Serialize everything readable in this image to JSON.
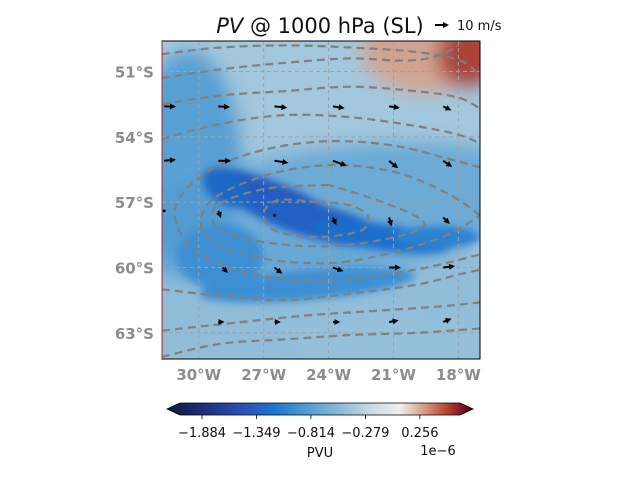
{
  "chart_data": {
    "type": "heatmap",
    "title_var": "PV",
    "title_rest": " @ 1000 hPa (SL)",
    "quiver_key": {
      "label": "10 m/s",
      "value_ms": 10
    },
    "x_ticks": [
      -30,
      -27,
      -24,
      -21,
      -18
    ],
    "x_tick_labels": [
      "30°W",
      "27°W",
      "24°W",
      "21°W",
      "18°W"
    ],
    "y_ticks": [
      -51,
      -54,
      -57,
      -60,
      -63
    ],
    "y_tick_labels": [
      "51°S",
      "54°S",
      "57°S",
      "60°S",
      "63°S"
    ],
    "xlim": [
      -31.7,
      -17.0
    ],
    "ylim": [
      -64.2,
      -49.6
    ],
    "grid": true,
    "colorbar": {
      "label": "PVU",
      "exponent_label": "1e−6",
      "ticks": [
        -1.884,
        -1.349,
        -0.814,
        -0.279,
        0.256
      ],
      "tick_labels": [
        "−1.884",
        "−1.349",
        "−0.814",
        "−0.279",
        "0.256"
      ],
      "vmin": -2.1,
      "vmax": 0.65,
      "cmap_stops": [
        [
          "#0d1a3a",
          0.0
        ],
        [
          "#1f2f7a",
          0.12
        ],
        [
          "#2a52b8",
          0.25
        ],
        [
          "#1876d2",
          0.35
        ],
        [
          "#4d9ad3",
          0.45
        ],
        [
          "#8fbcd8",
          0.57
        ],
        [
          "#cfdee6",
          0.68
        ],
        [
          "#eeeeee",
          0.76
        ],
        [
          "#d9a88f",
          0.83
        ],
        [
          "#b84a36",
          0.91
        ],
        [
          "#7a0f1f",
          0.97
        ],
        [
          "#3a0010",
          1.0
        ]
      ]
    },
    "contour_color": "#808080",
    "contours": [
      [
        [
          -31.7,
          -50.2
        ],
        [
          -29,
          -49.9
        ],
        [
          -26,
          -49.8
        ],
        [
          -23,
          -49.9
        ],
        [
          -20,
          -50.1
        ],
        [
          -17.9,
          -50.5
        ],
        [
          -17.0,
          -51.2
        ]
      ],
      [
        [
          -31.7,
          -51.3
        ],
        [
          -29,
          -50.9
        ],
        [
          -26,
          -50.6
        ],
        [
          -23,
          -50.4
        ],
        [
          -20.5,
          -50.5
        ],
        [
          -19,
          -50.3
        ],
        [
          -18,
          -49.8
        ]
      ],
      [
        [
          -31.7,
          -52.5
        ],
        [
          -29,
          -52.1
        ],
        [
          -26,
          -51.9
        ],
        [
          -23,
          -51.7
        ],
        [
          -20,
          -51.9
        ],
        [
          -18,
          -52.2
        ],
        [
          -17.0,
          -52.7
        ]
      ],
      [
        [
          -31.7,
          -54.1
        ],
        [
          -29,
          -53.4
        ],
        [
          -26,
          -53.0
        ],
        [
          -23,
          -53.1
        ],
        [
          -20,
          -53.5
        ],
        [
          -18,
          -53.9
        ],
        [
          -17.0,
          -54.3
        ]
      ],
      [
        [
          -17.0,
          -55.4
        ],
        [
          -18.5,
          -55.0
        ],
        [
          -21,
          -54.4
        ],
        [
          -24,
          -54.2
        ],
        [
          -27,
          -54.6
        ],
        [
          -29.6,
          -55.6
        ],
        [
          -31.1,
          -57.3
        ],
        [
          -30.2,
          -59.2
        ],
        [
          -27.5,
          -60.3
        ],
        [
          -24,
          -60.6
        ],
        [
          -20,
          -60.1
        ],
        [
          -17.0,
          -59.4
        ]
      ],
      [
        [
          -17.0,
          -57.6
        ],
        [
          -18.5,
          -56.6
        ],
        [
          -21,
          -55.6
        ],
        [
          -24,
          -55.3
        ],
        [
          -27,
          -55.8
        ],
        [
          -29.5,
          -57.0
        ],
        [
          -29.7,
          -58.5
        ],
        [
          -27.5,
          -59.5
        ],
        [
          -24,
          -59.8
        ],
        [
          -21,
          -59.3
        ],
        [
          -18.5,
          -58.5
        ],
        [
          -17.0,
          -57.6
        ]
      ],
      [
        [
          -24.0,
          -56.2
        ],
        [
          -27,
          -56.4
        ],
        [
          -29.2,
          -57.2
        ],
        [
          -29,
          -58.3
        ],
        [
          -26.5,
          -58.9
        ],
        [
          -23.5,
          -59.0
        ],
        [
          -20.5,
          -58.5
        ],
        [
          -19.6,
          -57.9
        ],
        [
          -21.5,
          -57.0
        ],
        [
          -24.0,
          -56.2
        ]
      ],
      [
        [
          -24.5,
          -57.0
        ],
        [
          -26.3,
          -56.9
        ],
        [
          -27.0,
          -57.5
        ],
        [
          -26.5,
          -58.3
        ],
        [
          -24.5,
          -58.6
        ],
        [
          -22.5,
          -58.3
        ],
        [
          -22.2,
          -57.6
        ],
        [
          -23.2,
          -57.1
        ],
        [
          -24.5,
          -57.0
        ]
      ],
      [
        [
          -31.7,
          -61.0
        ],
        [
          -29,
          -61.3
        ],
        [
          -26,
          -61.5
        ],
        [
          -23,
          -61.2
        ],
        [
          -20,
          -60.8
        ],
        [
          -17.9,
          -60.3
        ],
        [
          -17.0,
          -60.1
        ]
      ],
      [
        [
          -31.7,
          -62.9
        ],
        [
          -28,
          -62.5
        ],
        [
          -25,
          -62.2
        ],
        [
          -22,
          -62.0
        ],
        [
          -19,
          -61.8
        ],
        [
          -17.0,
          -61.6
        ]
      ],
      [
        [
          -31.7,
          -64.1
        ],
        [
          -29,
          -63.5
        ],
        [
          -26,
          -63.3
        ],
        [
          -23,
          -63.1
        ],
        [
          -20,
          -63.0
        ],
        [
          -17.0,
          -62.8
        ]
      ]
    ],
    "vectors": [
      [
        -31.6,
        -52.6,
        8,
        -0.2
      ],
      [
        -29.1,
        -52.6,
        8,
        -0.5
      ],
      [
        -26.5,
        -52.6,
        9,
        -1.0
      ],
      [
        -23.8,
        -52.6,
        8,
        -1.2
      ],
      [
        -21.2,
        -52.6,
        7,
        -1.0
      ],
      [
        -18.7,
        -52.6,
        5,
        -2.5
      ],
      [
        -31.6,
        -55.1,
        8,
        0.8
      ],
      [
        -29.1,
        -55.1,
        9,
        0.0
      ],
      [
        -26.5,
        -55.1,
        10,
        -1.5
      ],
      [
        -23.8,
        -55.1,
        10,
        -3.5
      ],
      [
        -21.2,
        -55.1,
        6,
        -5.0
      ],
      [
        -18.7,
        -55.1,
        6,
        -4.0
      ],
      [
        -31.6,
        -57.4,
        1,
        -2.0
      ],
      [
        -29.1,
        -57.4,
        1.5,
        -4.0
      ],
      [
        -26.5,
        -57.6,
        1,
        -2.0
      ],
      [
        -23.8,
        -57.7,
        2,
        -4.5
      ],
      [
        -21.2,
        -57.7,
        1.5,
        -5.5
      ],
      [
        -18.7,
        -57.7,
        4,
        -4.0
      ],
      [
        -28.9,
        -60.0,
        3,
        -3.0
      ],
      [
        -26.5,
        -60.0,
        5,
        -4.0
      ],
      [
        -23.8,
        -60.0,
        7,
        -2.5
      ],
      [
        -21.2,
        -60.0,
        8,
        0.0
      ],
      [
        -18.7,
        -60.0,
        8,
        1.0
      ],
      [
        -29.1,
        -62.5,
        3,
        0.0
      ],
      [
        -26.5,
        -62.5,
        3,
        0.0
      ],
      [
        -23.8,
        -62.5,
        4,
        0.0
      ],
      [
        -21.2,
        -62.5,
        6,
        1.0
      ],
      [
        -18.7,
        -62.5,
        5,
        2.0
      ]
    ]
  }
}
